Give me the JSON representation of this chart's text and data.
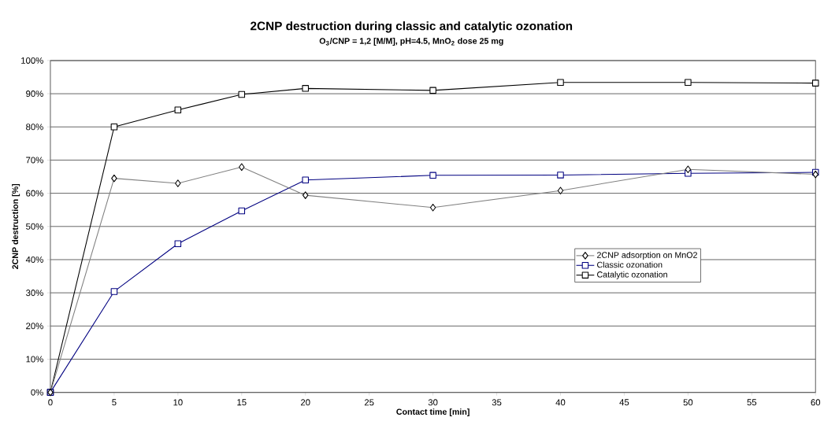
{
  "chart_data": {
    "type": "line",
    "title": "2CNP destruction during classic and catalytic ozonation",
    "subtitle": "O$_{3}$/CNP = 1,2 [M/M], pH=4.5, MnO$_{2}$ dose 25 mg",
    "xlabel": "Contact time [min]",
    "ylabel": "2CNP destruction [%]",
    "x": [
      0,
      5,
      10,
      15,
      20,
      30,
      40,
      50,
      60
    ],
    "series": [
      {
        "name": "2CNP adsorption on MnO2",
        "color": "#808080",
        "marker": "diamond",
        "values": [
          0,
          64.5,
          63.0,
          67.9,
          59.4,
          55.7,
          60.8,
          67.2,
          65.7
        ]
      },
      {
        "name": "Classic ozonation",
        "color": "#000080",
        "marker": "square",
        "values": [
          0,
          30.4,
          44.8,
          54.7,
          64.0,
          65.4,
          65.5,
          66.0,
          66.3
        ]
      },
      {
        "name": "Catalytic ozonation",
        "color": "#000000",
        "marker": "square",
        "values": [
          0,
          80.0,
          85.1,
          89.8,
          91.6,
          91.0,
          93.4,
          93.4,
          93.2
        ]
      }
    ],
    "xlim": [
      0,
      60
    ],
    "xticks": [
      0,
      5,
      10,
      15,
      20,
      25,
      30,
      35,
      40,
      45,
      50,
      55,
      60
    ],
    "ylim": [
      0,
      100
    ],
    "yticks": [
      {
        "value": 0,
        "label": "0%"
      },
      {
        "value": 10,
        "label": "10%"
      },
      {
        "value": 20,
        "label": "20%"
      },
      {
        "value": 30,
        "label": "30%"
      },
      {
        "value": 40,
        "label": "40%"
      },
      {
        "value": 50,
        "label": "50%"
      },
      {
        "value": 60,
        "label": "60%"
      },
      {
        "value": 70,
        "label": "70%"
      },
      {
        "value": 80,
        "label": "80%"
      },
      {
        "value": 90,
        "label": "90%"
      },
      {
        "value": 100,
        "label": "100%"
      }
    ],
    "grid": "y",
    "legend": "right",
    "line_style": "solid"
  }
}
